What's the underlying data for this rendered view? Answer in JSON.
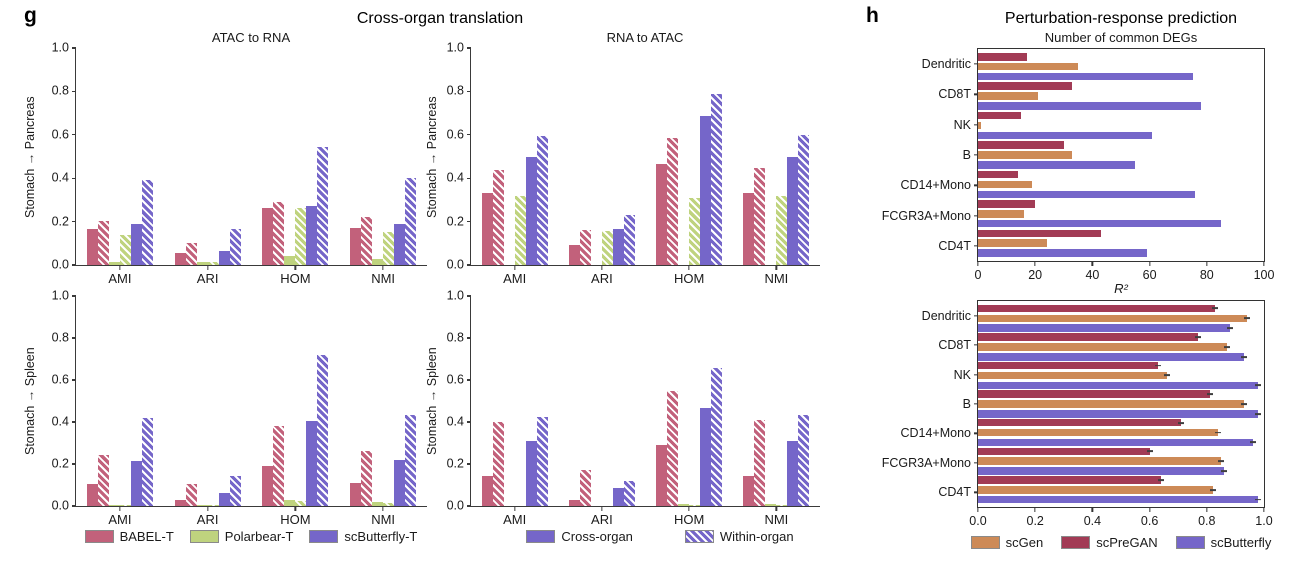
{
  "panels": {
    "g": {
      "label": "g",
      "title": "Cross-organ translation",
      "legend_methods": [
        {
          "label": "BABEL-T",
          "color": "#c2617b",
          "hatch": false
        },
        {
          "label": "Polarbear-T",
          "color": "#bfd37e",
          "hatch": false
        },
        {
          "label": "scButterfly-T",
          "color": "#7566c9",
          "hatch": false
        }
      ],
      "legend_variants": [
        {
          "label": "Cross-organ",
          "color": "#7566c9",
          "hatch": false
        },
        {
          "label": "Within-organ",
          "color": "#7566c9",
          "hatch": true
        }
      ]
    },
    "h": {
      "label": "h",
      "title": "Perturbation-response prediction",
      "legend": [
        {
          "label": "scGen",
          "color": "#cd8a57",
          "hatch": false
        },
        {
          "label": "scPreGAN",
          "color": "#a23b55",
          "hatch": false
        },
        {
          "label": "scButterfly",
          "color": "#7566c9",
          "hatch": false
        }
      ]
    }
  },
  "colors": {
    "babel_t": "#c2617b",
    "polarbear_t": "#bfd37e",
    "scbutterfly_t": "#7566c9",
    "scgen": "#cd8a57",
    "scpregan": "#a23b55",
    "scbutterfly": "#7566c9",
    "axis": "#3a3a3a"
  },
  "chart_data": [
    {
      "id": "g-atac-to-rna-pancreas",
      "type": "bar",
      "orientation": "vertical",
      "title": "ATAC to RNA",
      "ylabel": "Stomach → Pancreas",
      "categories": [
        "AMI",
        "ARI",
        "HOM",
        "NMI"
      ],
      "ylim": [
        0,
        1.0
      ],
      "yticks": [
        "0.0",
        "0.2",
        "0.4",
        "0.6",
        "0.8",
        "1.0"
      ],
      "series": [
        {
          "method": "BABEL-T",
          "variant": "cross-organ",
          "color": "#c2617b",
          "hatch": false,
          "values": [
            0.165,
            0.055,
            0.265,
            0.17
          ]
        },
        {
          "method": "BABEL-T",
          "variant": "within-organ",
          "color": "#c2617b",
          "hatch": true,
          "values": [
            0.205,
            0.1,
            0.29,
            0.22
          ]
        },
        {
          "method": "Polarbear-T",
          "variant": "cross-organ",
          "color": "#bfd37e",
          "hatch": false,
          "values": [
            0.013,
            0.012,
            0.04,
            0.03
          ]
        },
        {
          "method": "Polarbear-T",
          "variant": "within-organ",
          "color": "#bfd37e",
          "hatch": true,
          "values": [
            0.14,
            0.015,
            0.265,
            0.15
          ]
        },
        {
          "method": "scButterfly-T",
          "variant": "cross-organ",
          "color": "#7566c9",
          "hatch": false,
          "values": [
            0.19,
            0.065,
            0.27,
            0.19
          ]
        },
        {
          "method": "scButterfly-T",
          "variant": "within-organ",
          "color": "#7566c9",
          "hatch": true,
          "values": [
            0.39,
            0.165,
            0.545,
            0.4
          ]
        }
      ]
    },
    {
      "id": "g-rna-to-atac-pancreas",
      "type": "bar",
      "orientation": "vertical",
      "title": "RNA to ATAC",
      "ylabel": "Stomach → Pancreas",
      "categories": [
        "AMI",
        "ARI",
        "HOM",
        "NMI"
      ],
      "ylim": [
        0,
        1.0
      ],
      "yticks": [
        "0.0",
        "0.2",
        "0.4",
        "0.6",
        "0.8",
        "1.0"
      ],
      "series": [
        {
          "method": "BABEL-T",
          "variant": "cross-organ",
          "color": "#c2617b",
          "hatch": false,
          "values": [
            0.33,
            0.09,
            0.465,
            0.33
          ]
        },
        {
          "method": "BABEL-T",
          "variant": "within-organ",
          "color": "#c2617b",
          "hatch": true,
          "values": [
            0.44,
            0.16,
            0.585,
            0.445
          ]
        },
        {
          "method": "Polarbear-T",
          "variant": "cross-organ",
          "color": "#bfd37e",
          "hatch": false,
          "values": [
            0,
            0,
            0,
            0
          ]
        },
        {
          "method": "Polarbear-T",
          "variant": "within-organ",
          "color": "#bfd37e",
          "hatch": true,
          "values": [
            0.32,
            0.155,
            0.31,
            0.32
          ]
        },
        {
          "method": "scButterfly-T",
          "variant": "cross-organ",
          "color": "#7566c9",
          "hatch": false,
          "values": [
            0.5,
            0.165,
            0.685,
            0.5
          ]
        },
        {
          "method": "scButterfly-T",
          "variant": "within-organ",
          "color": "#7566c9",
          "hatch": true,
          "values": [
            0.595,
            0.23,
            0.79,
            0.6
          ]
        }
      ]
    },
    {
      "id": "g-atac-to-rna-spleen",
      "type": "bar",
      "orientation": "vertical",
      "title": "",
      "ylabel": "Stomach → Spleen",
      "categories": [
        "AMI",
        "ARI",
        "HOM",
        "NMI"
      ],
      "ylim": [
        0,
        1.0
      ],
      "yticks": [
        "0.0",
        "0.2",
        "0.4",
        "0.6",
        "0.8",
        "1.0"
      ],
      "series": [
        {
          "method": "BABEL-T",
          "variant": "cross-organ",
          "color": "#c2617b",
          "hatch": false,
          "values": [
            0.105,
            0.03,
            0.19,
            0.11
          ]
        },
        {
          "method": "BABEL-T",
          "variant": "within-organ",
          "color": "#c2617b",
          "hatch": true,
          "values": [
            0.245,
            0.105,
            0.38,
            0.26
          ]
        },
        {
          "method": "Polarbear-T",
          "variant": "cross-organ",
          "color": "#bfd37e",
          "hatch": false,
          "values": [
            0.005,
            0.004,
            0.03,
            0.02
          ]
        },
        {
          "method": "Polarbear-T",
          "variant": "within-organ",
          "color": "#bfd37e",
          "hatch": true,
          "values": [
            0.004,
            0.003,
            0.025,
            0.015
          ]
        },
        {
          "method": "scButterfly-T",
          "variant": "cross-organ",
          "color": "#7566c9",
          "hatch": false,
          "values": [
            0.215,
            0.06,
            0.405,
            0.22
          ]
        },
        {
          "method": "scButterfly-T",
          "variant": "within-organ",
          "color": "#7566c9",
          "hatch": true,
          "values": [
            0.42,
            0.145,
            0.72,
            0.435
          ]
        }
      ]
    },
    {
      "id": "g-rna-to-atac-spleen",
      "type": "bar",
      "orientation": "vertical",
      "title": "",
      "ylabel": "Stomach → Spleen",
      "categories": [
        "AMI",
        "ARI",
        "HOM",
        "NMI"
      ],
      "ylim": [
        0,
        1.0
      ],
      "yticks": [
        "0.0",
        "0.2",
        "0.4",
        "0.6",
        "0.8",
        "1.0"
      ],
      "series": [
        {
          "method": "BABEL-T",
          "variant": "cross-organ",
          "color": "#c2617b",
          "hatch": false,
          "values": [
            0.145,
            0.03,
            0.29,
            0.145
          ]
        },
        {
          "method": "BABEL-T",
          "variant": "within-organ",
          "color": "#c2617b",
          "hatch": true,
          "values": [
            0.4,
            0.17,
            0.55,
            0.41
          ]
        },
        {
          "method": "Polarbear-T",
          "variant": "cross-organ",
          "color": "#bfd37e",
          "hatch": false,
          "values": [
            0,
            0,
            0.01,
            0.008
          ]
        },
        {
          "method": "Polarbear-T",
          "variant": "within-organ",
          "color": "#bfd37e",
          "hatch": true,
          "values": [
            0,
            0,
            0.006,
            0.005
          ]
        },
        {
          "method": "scButterfly-T",
          "variant": "cross-organ",
          "color": "#7566c9",
          "hatch": false,
          "values": [
            0.31,
            0.085,
            0.465,
            0.31
          ]
        },
        {
          "method": "scButterfly-T",
          "variant": "within-organ",
          "color": "#7566c9",
          "hatch": true,
          "values": [
            0.425,
            0.12,
            0.655,
            0.435
          ]
        }
      ]
    },
    {
      "id": "h-common-degs",
      "type": "bar",
      "orientation": "horizontal",
      "title": "Number of common DEGs",
      "categories": [
        "Dendritic",
        "CD8T",
        "NK",
        "B",
        "CD14+Mono",
        "FCGR3A+Mono",
        "CD4T"
      ],
      "xlim": [
        0,
        100
      ],
      "xticks": [
        "0",
        "20",
        "40",
        "60",
        "80",
        "100"
      ],
      "error_bar": false,
      "series": [
        {
          "name": "scPreGAN",
          "color": "#a23b55",
          "values": [
            17,
            33,
            15,
            30,
            14,
            20,
            43
          ]
        },
        {
          "name": "scGen",
          "color": "#cd8a57",
          "values": [
            35,
            21,
            1,
            33,
            19,
            16,
            24
          ]
        },
        {
          "name": "scButterfly",
          "color": "#7566c9",
          "values": [
            75,
            78,
            61,
            55,
            76,
            85,
            59
          ]
        }
      ]
    },
    {
      "id": "h-r-squared",
      "type": "bar",
      "orientation": "horizontal",
      "title": "R²",
      "categories": [
        "Dendritic",
        "CD8T",
        "NK",
        "B",
        "CD14+Mono",
        "FCGR3A A+Mono",
        "CD4T"
      ],
      "categories_fix": [
        "Dendritic",
        "CD8T",
        "NK",
        "B",
        "CD14+Mono",
        "FCGR3A+Mono",
        "CD4T"
      ],
      "xlim": [
        0,
        1.0
      ],
      "xticks": [
        "0.0",
        "0.2",
        "0.4",
        "0.6",
        "0.8",
        "1.0"
      ],
      "error_bar": true,
      "series": [
        {
          "name": "scPreGAN",
          "color": "#a23b55",
          "values": [
            0.83,
            0.77,
            0.63,
            0.81,
            0.71,
            0.6,
            0.64
          ]
        },
        {
          "name": "scGen",
          "color": "#cd8a57",
          "values": [
            0.94,
            0.87,
            0.66,
            0.93,
            0.84,
            0.85,
            0.82
          ]
        },
        {
          "name": "scButterfly",
          "color": "#7566c9",
          "values": [
            0.88,
            0.93,
            0.98,
            0.98,
            0.96,
            0.86,
            0.98
          ]
        }
      ]
    }
  ]
}
